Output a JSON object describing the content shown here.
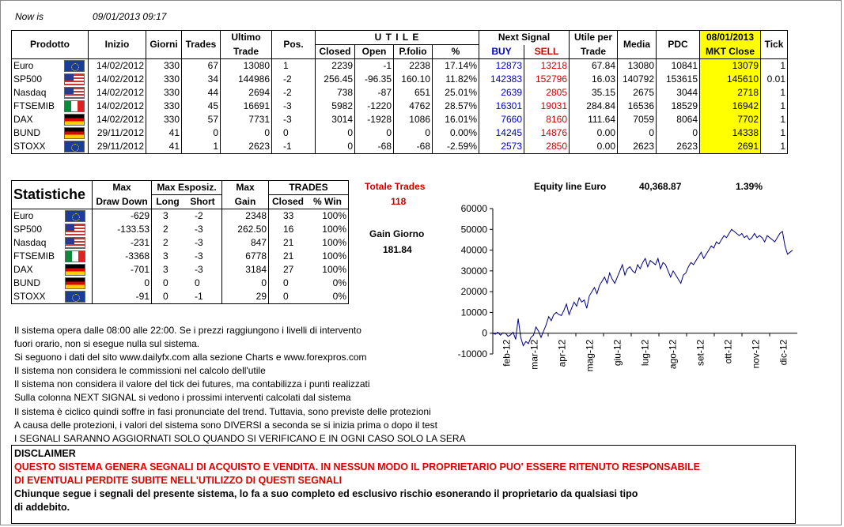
{
  "header": {
    "now_label": "Now is",
    "now_value": "09/01/2013 09:17"
  },
  "table1": {
    "headers": {
      "prodotto": "Prodotto",
      "inizio": "Inizio",
      "giorni": "Giorni",
      "trades": "Trades",
      "ultimo1": "Ultimo",
      "ultimo2": "Trade",
      "pos": "Pos.",
      "utile": "U T I L E",
      "closed": "Closed",
      "open": "Open",
      "pfolio": "P.folio",
      "pct": "%",
      "next_signal": "Next Signal",
      "buy": "BUY",
      "sell": "SELL",
      "utile_per1": "Utile per",
      "utile_per2": "Trade",
      "media": "Media",
      "pdc": "PDC",
      "mkt1": "08/01/2013",
      "mkt2": "MKT Close",
      "tick": "Tick"
    },
    "rows": [
      {
        "name": "Euro",
        "flag": "eu",
        "inizio": "14/02/2012",
        "giorni": "330",
        "trades": "67",
        "ultimo": "13080",
        "pos": "1",
        "closed": "2239",
        "open": "-1",
        "pfolio": "2238",
        "pct": "17.14%",
        "buy": "12873",
        "sell": "13218",
        "utile_per": "67.84",
        "media": "13080",
        "pdc": "10841",
        "mkt": "13079",
        "tick": "1"
      },
      {
        "name": "SP500",
        "flag": "us",
        "inizio": "14/02/2012",
        "giorni": "330",
        "trades": "34",
        "ultimo": "144986",
        "pos": "-2",
        "closed": "256.45",
        "open": "-96.35",
        "pfolio": "160.10",
        "pct": "11.82%",
        "buy": "142383",
        "sell": "152796",
        "utile_per": "16.03",
        "media": "140792",
        "pdc": "153615",
        "mkt": "145610",
        "tick": "0.01"
      },
      {
        "name": "Nasdaq",
        "flag": "us",
        "inizio": "14/02/2012",
        "giorni": "330",
        "trades": "44",
        "ultimo": "2694",
        "pos": "-2",
        "closed": "738",
        "open": "-87",
        "pfolio": "651",
        "pct": "25.01%",
        "buy": "2639",
        "sell": "2805",
        "utile_per": "35.15",
        "media": "2675",
        "pdc": "3044",
        "mkt": "2718",
        "tick": "1"
      },
      {
        "name": "FTSEMIB",
        "flag": "it",
        "inizio": "14/02/2012",
        "giorni": "330",
        "trades": "45",
        "ultimo": "16691",
        "pos": "-3",
        "closed": "5982",
        "open": "-1220",
        "pfolio": "4762",
        "pct": "28.57%",
        "buy": "16301",
        "sell": "19031",
        "utile_per": "284.84",
        "media": "16536",
        "pdc": "18529",
        "mkt": "16942",
        "tick": "1"
      },
      {
        "name": "DAX",
        "flag": "de",
        "inizio": "14/02/2012",
        "giorni": "330",
        "trades": "57",
        "ultimo": "7731",
        "pos": "-3",
        "closed": "3014",
        "open": "-1928",
        "pfolio": "1086",
        "pct": "16.01%",
        "buy": "7660",
        "sell": "8160",
        "utile_per": "111.64",
        "media": "7059",
        "pdc": "8064",
        "mkt": "7702",
        "tick": "1"
      },
      {
        "name": "BUND",
        "flag": "de",
        "inizio": "29/11/2012",
        "giorni": "41",
        "trades": "0",
        "ultimo": "0",
        "pos": "0",
        "closed": "0",
        "open": "0",
        "pfolio": "0",
        "pct": "0.00%",
        "buy": "14245",
        "sell": "14876",
        "utile_per": "0.00",
        "media": "0",
        "pdc": "0",
        "mkt": "14338",
        "tick": "1"
      },
      {
        "name": "STOXX",
        "flag": "eu",
        "inizio": "29/11/2012",
        "giorni": "41",
        "trades": "1",
        "ultimo": "2623",
        "pos": "-1",
        "closed": "0",
        "open": "-68",
        "pfolio": "-68",
        "pct": "-2.59%",
        "buy": "2573",
        "sell": "2850",
        "utile_per": "0.00",
        "media": "2623",
        "pdc": "2623",
        "mkt": "2691",
        "tick": "1"
      }
    ]
  },
  "stats": {
    "title": "Statistiche",
    "headers": {
      "max1": "Max",
      "max2": "Draw Down",
      "esp1": "Max Esposiz.",
      "long": "Long",
      "short": "Short",
      "gain1": "Max",
      "gain2": "Gain",
      "tr1": "TRADES",
      "closed": "Closed",
      "win": "% Win"
    },
    "rows": [
      {
        "name": "Euro",
        "flag": "eu",
        "dd": "-629",
        "long": "3",
        "short": "-2",
        "gain": "2348",
        "closed": "33",
        "win": "100%"
      },
      {
        "name": "SP500",
        "flag": "us",
        "dd": "-133.53",
        "long": "2",
        "short": "-3",
        "gain": "262.50",
        "closed": "16",
        "win": "100%"
      },
      {
        "name": "Nasdaq",
        "flag": "us",
        "dd": "-231",
        "long": "2",
        "short": "-3",
        "gain": "847",
        "closed": "21",
        "win": "100%"
      },
      {
        "name": "FTSEMIB",
        "flag": "it",
        "dd": "-3368",
        "long": "3",
        "short": "-3",
        "gain": "6778",
        "closed": "21",
        "win": "100%"
      },
      {
        "name": "DAX",
        "flag": "de",
        "dd": "-701",
        "long": "3",
        "short": "-3",
        "gain": "3184",
        "closed": "27",
        "win": "100%"
      },
      {
        "name": "BUND",
        "flag": "de",
        "dd": "0",
        "long": "0",
        "short": "0",
        "gain": "0",
        "closed": "0",
        "win": "0%"
      },
      {
        "name": "STOXX",
        "flag": "eu",
        "dd": "-91",
        "long": "0",
        "short": "-1",
        "gain": "29",
        "closed": "0",
        "win": "0%"
      }
    ],
    "totale_label": "Totale Trades",
    "totale_value": "118",
    "gain_label": "Gain Giorno",
    "gain_value": "181.84",
    "equity_label": "Equity line Euro",
    "equity_value": "40,368.87",
    "equity_pct": "1.39%"
  },
  "notes": [
    "Il sistema opera dalle 08:00 alle 22:00. Se i prezzi raggiungono i livelli di intervento",
    "fuori orario, non si esegue nulla sul sistema.",
    "Si seguono i dati del sito www.dailyfx.com alla sezione Charts e www.forexpros.com",
    "Il sistema non considera le commissioni nel calcolo dell'utile",
    "Il sistema non considera il valore del tick dei futures, ma contabilizza i punti realizzati",
    "Sulla colonna NEXT SIGNAL si vedono i prossimi interventi calcolati dal sistema",
    "Il sistema è ciclico quindi soffre in fasi pronunciate del trend. Tuttavia, sono previste delle protezioni",
    "A causa delle protezioni, i valori del sistema sono DIVERSI a seconda se si inizia prima o dopo il test",
    "I SEGNALI SARANNO AGGIORNATI SOLO QUANDO SI VERIFICANO E IN OGNI CASO SOLO LA SERA"
  ],
  "disclaimer": {
    "title": "DISCLAIMER",
    "red1": "QUESTO SISTEMA GENERA SEGNALI DI ACQUISTO E VENDITA. IN NESSUN MODO IL PROPRIETARIO PUO' ESSERE RITENUTO RESPONSABILE",
    "red2": "DI EVENTUALI PERDITE SUBITE NELL'UTILIZZO DI QUESTI SEGNALI",
    "black1": "Chiunque segue i segnali del presente sistema, lo fa a suo completo ed esclusivo rischio esonerando il proprietario da qualsiasi tipo",
    "black2": "di addebito."
  },
  "chart_data": {
    "type": "line",
    "title": "",
    "xlabel": "",
    "ylabel": "",
    "ylim": [
      -10000,
      60000
    ],
    "yticks": [
      "60000",
      "50000",
      "40000",
      "30000",
      "20000",
      "10000",
      "0",
      "-10000"
    ],
    "ytick_values": [
      60000,
      50000,
      40000,
      30000,
      20000,
      10000,
      0,
      -10000
    ],
    "xticks": [
      "feb-12",
      "mar-12",
      "apr-12",
      "mag-12",
      "giu-12",
      "lug-12",
      "ago-12",
      "set-12",
      "ott-12",
      "nov-12",
      "dic-12"
    ],
    "series": [
      {
        "color": "#000080",
        "values": [
          0,
          -500,
          500,
          -1000,
          200,
          0,
          -1500,
          -800,
          500,
          -3000,
          7000,
          -2000,
          -6000,
          -4000,
          -5000,
          -2000,
          -1000,
          3000,
          1000,
          -2000,
          1000,
          4000,
          8000,
          6000,
          9000,
          10000,
          9000,
          8500,
          11000,
          14000,
          9000,
          12000,
          15000,
          13000,
          17000,
          15000,
          16000,
          12000,
          18000,
          20000,
          22000,
          19000,
          23000,
          25000,
          27000,
          24000,
          29000,
          26000,
          24000,
          27000,
          30000,
          33000,
          28000,
          31000,
          32000,
          30000,
          29000,
          33000,
          31000,
          34000,
          36000,
          32000,
          35000,
          34000,
          33000,
          36000,
          31000,
          34000,
          33000,
          30000,
          27000,
          30000,
          28000,
          26000,
          24000,
          28000,
          29000,
          32000,
          34000,
          33000,
          35000,
          37000,
          39000,
          36000,
          38000,
          40000,
          42000,
          41000,
          44000,
          43000,
          45000,
          47000,
          46000,
          48000,
          50000,
          49000,
          48000,
          47000,
          48000,
          46000,
          47000,
          45000,
          46000,
          48000,
          46000,
          47000,
          46000,
          44000,
          47000,
          46000,
          45000,
          44000,
          46000,
          48000,
          49000,
          42000,
          38000,
          39000,
          40000
        ]
      }
    ]
  }
}
